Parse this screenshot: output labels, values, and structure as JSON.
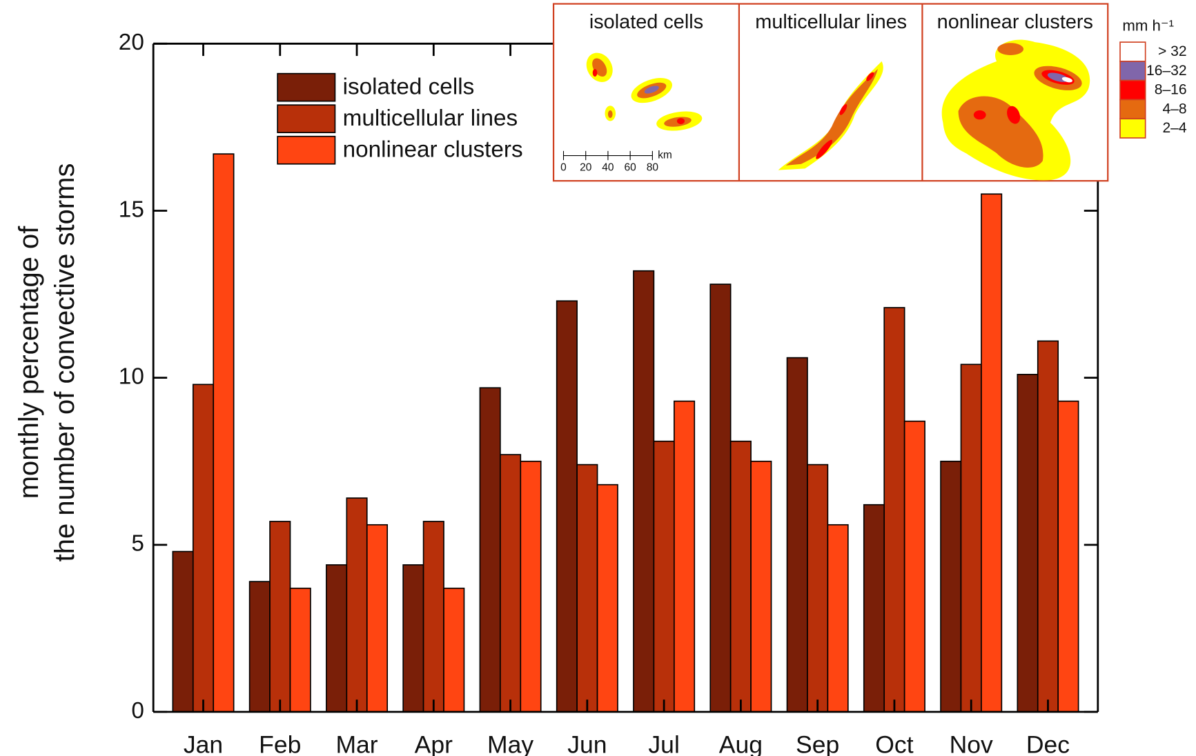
{
  "chart_data": {
    "type": "bar",
    "y_label": [
      "monthly percentage of",
      "the number of convective storms"
    ],
    "categories": [
      "Jan",
      "Feb",
      "Mar",
      "Apr",
      "May",
      "Jun",
      "Jul",
      "Aug",
      "Sep",
      "Oct",
      "Nov",
      "Dec"
    ],
    "series": [
      {
        "name": "isolated cells",
        "color": "#7a1f08",
        "values": [
          4.8,
          3.9,
          4.4,
          4.4,
          9.7,
          12.3,
          13.2,
          12.8,
          10.6,
          6.2,
          7.5,
          10.1
        ]
      },
      {
        "name": "multicellular lines",
        "color": "#b8300a",
        "values": [
          9.8,
          5.7,
          6.4,
          5.7,
          7.7,
          7.4,
          8.1,
          8.1,
          7.4,
          12.1,
          10.4,
          11.1
        ]
      },
      {
        "name": "nonlinear clusters",
        "color": "#ff4512",
        "values": [
          16.7,
          3.7,
          5.6,
          3.7,
          7.5,
          6.8,
          9.3,
          7.5,
          5.6,
          8.7,
          15.5,
          9.3
        ]
      }
    ],
    "ylim": [
      0,
      20
    ],
    "yticks": [
      0,
      5,
      10,
      15,
      20
    ],
    "grid": false,
    "legend": "upper-left",
    "inset": {
      "panels": [
        "isolated cells",
        "multicellular lines",
        "nonlinear clusters"
      ],
      "scale_labels": [
        "0",
        "20",
        "40",
        "60",
        "80"
      ],
      "scale_unit": "km",
      "legend_title": "mm h⁻¹",
      "legend": [
        {
          "label": "> 32",
          "color": "#ffffff"
        },
        {
          "label": "16–32",
          "color": "#8066aa"
        },
        {
          "label": "8–16",
          "color": "#ff0000"
        },
        {
          "label": "4–8",
          "color": "#e56a10"
        },
        {
          "label": "2–4",
          "color": "#ffff00"
        }
      ]
    }
  }
}
